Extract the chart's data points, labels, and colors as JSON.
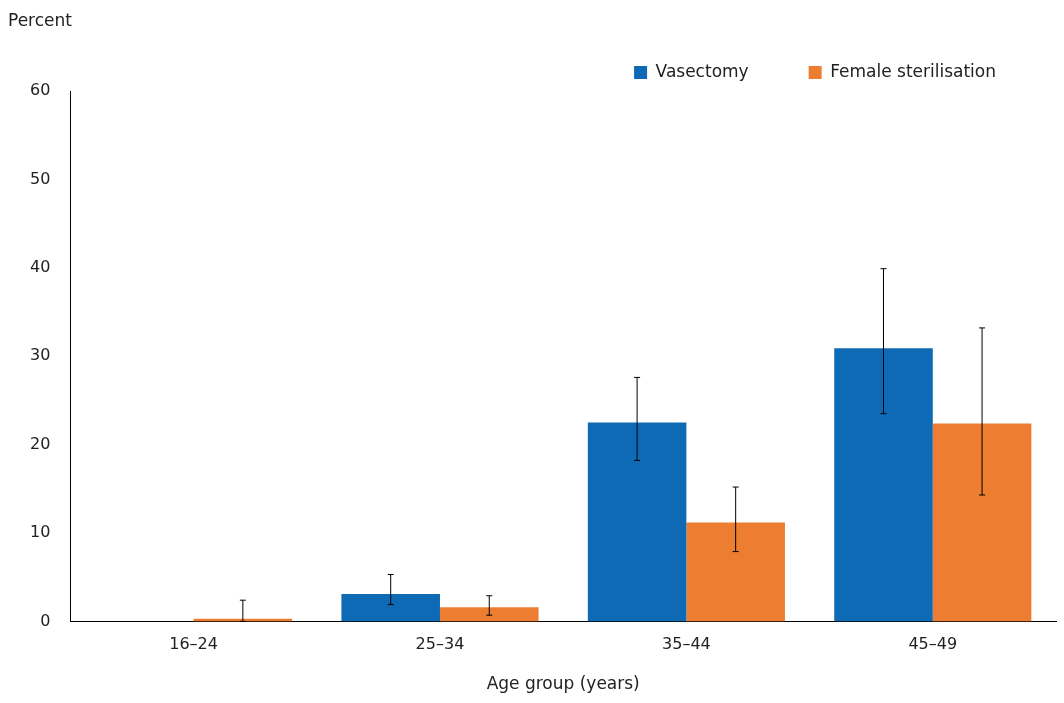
{
  "chart_data": {
    "type": "bar",
    "xlabel": "Age group (years)",
    "ylabel": "Percent",
    "categories": [
      "16–24",
      "25–34",
      "35–44",
      "45–49"
    ],
    "series": [
      {
        "name": "Vasectomy",
        "color": "#0e6ab4",
        "values": [
          0,
          3.1,
          22.5,
          30.9
        ],
        "errors": [
          null,
          [
            1.9,
            5.3
          ],
          [
            18.2,
            27.6
          ],
          [
            23.5,
            39.9
          ]
        ]
      },
      {
        "name": "Female sterilisation",
        "color": "#ed7d31",
        "values": [
          0.3,
          1.6,
          11.2,
          22.4
        ],
        "errors": [
          [
            0,
            2.4
          ],
          [
            0.7,
            2.9
          ],
          [
            7.9,
            15.2
          ],
          [
            14.3,
            33.2
          ]
        ]
      }
    ],
    "ylim": [
      0,
      60
    ],
    "yticks": [
      0,
      10,
      20,
      30,
      40,
      50,
      60
    ],
    "grid": false,
    "legend": "top right"
  }
}
